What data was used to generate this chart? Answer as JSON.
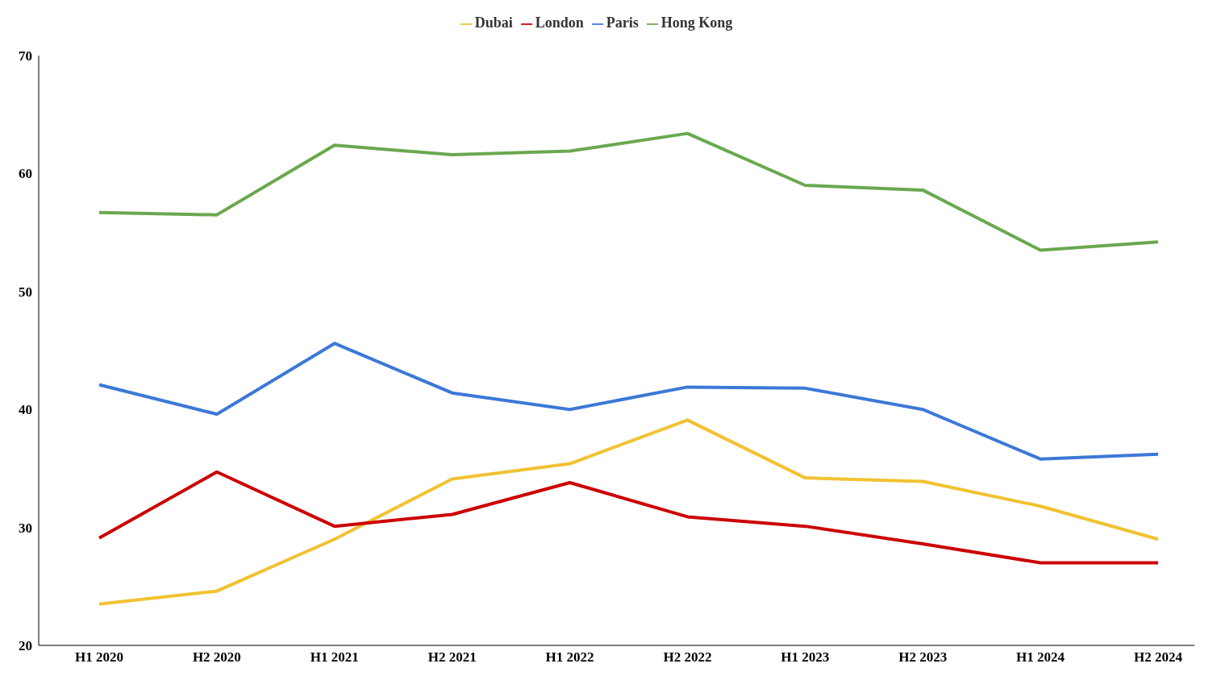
{
  "chart_data": {
    "type": "line",
    "categories": [
      "H1 2020",
      "H2 2020",
      "H1 2021",
      "H2 2021",
      "H1 2022",
      "H2 2022",
      "H1 2023",
      "H2 2023",
      "H1 2024",
      "H2 2024"
    ],
    "series": [
      {
        "name": "Dubai",
        "color": "#f1c232",
        "values": [
          23.5,
          24.6,
          29.0,
          34.1,
          35.4,
          39.1,
          34.2,
          33.9,
          31.8,
          29.0
        ]
      },
      {
        "name": "London",
        "color": "#cc0000",
        "values": [
          29.1,
          34.7,
          30.1,
          31.1,
          33.8,
          30.9,
          30.1,
          28.6,
          27.0,
          27.0
        ]
      },
      {
        "name": "Paris",
        "color": "#3c78d8",
        "values": [
          42.1,
          39.6,
          45.6,
          41.4,
          40.0,
          41.9,
          41.8,
          40.0,
          35.8,
          36.2
        ]
      },
      {
        "name": "Hong Kong",
        "color": "#6aa84f",
        "values": [
          56.7,
          56.5,
          62.4,
          61.6,
          61.9,
          63.4,
          59.0,
          58.6,
          53.5,
          54.2
        ]
      }
    ],
    "ylim": [
      20,
      70
    ],
    "yticks": [
      20,
      30,
      40,
      50,
      60,
      70
    ],
    "grid": false,
    "legend": "top",
    "marker": "none",
    "line_style": "solid"
  }
}
